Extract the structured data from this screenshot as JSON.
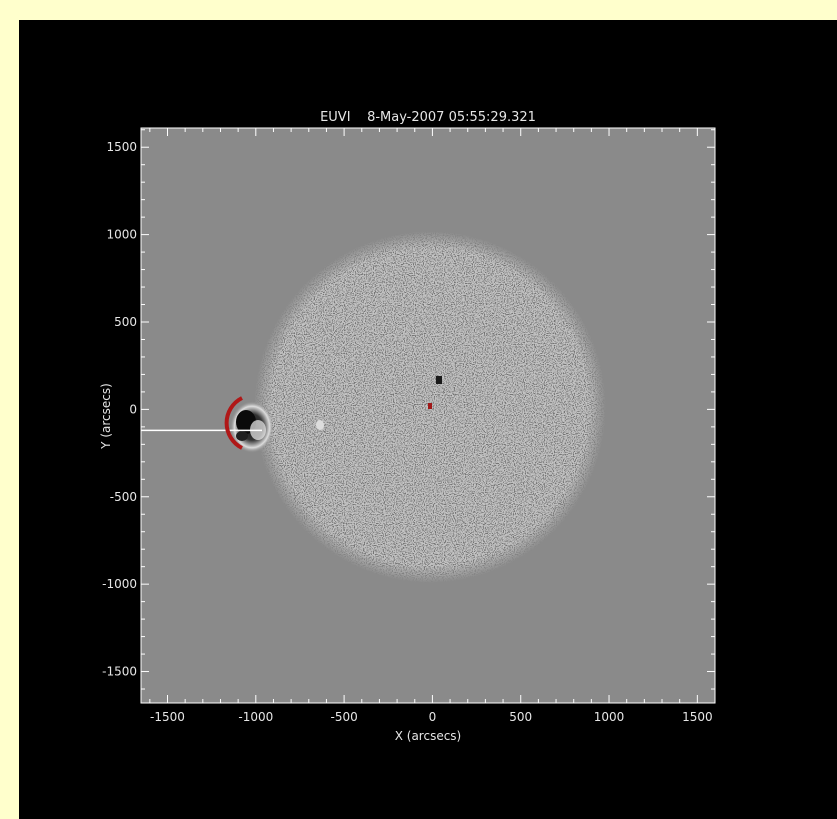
{
  "figure": {
    "title": "EUVI    8-May-2007 05:55:29.321",
    "xlabel": "X (arcsecs)",
    "ylabel": "Y (arcsecs)",
    "x_ticks": [
      "-1500",
      "-1000",
      "-500",
      "0",
      "500",
      "1000",
      "1500"
    ],
    "y_ticks": [
      "1500",
      "1000",
      "500",
      "0",
      "-500",
      "-1000",
      "-1500"
    ],
    "x_range": [
      -1650,
      1600
    ],
    "y_range": [
      -1680,
      1610
    ],
    "solar_disk_radius_arcsec": 1000,
    "marker_line_y_arcsec": -120,
    "colors": {
      "page_background": "#FFFFCC",
      "panel_background": "#000000",
      "image_background": "#8a8a8a",
      "axis_color": "#ffffff",
      "arc_marker": "#b01818"
    }
  }
}
